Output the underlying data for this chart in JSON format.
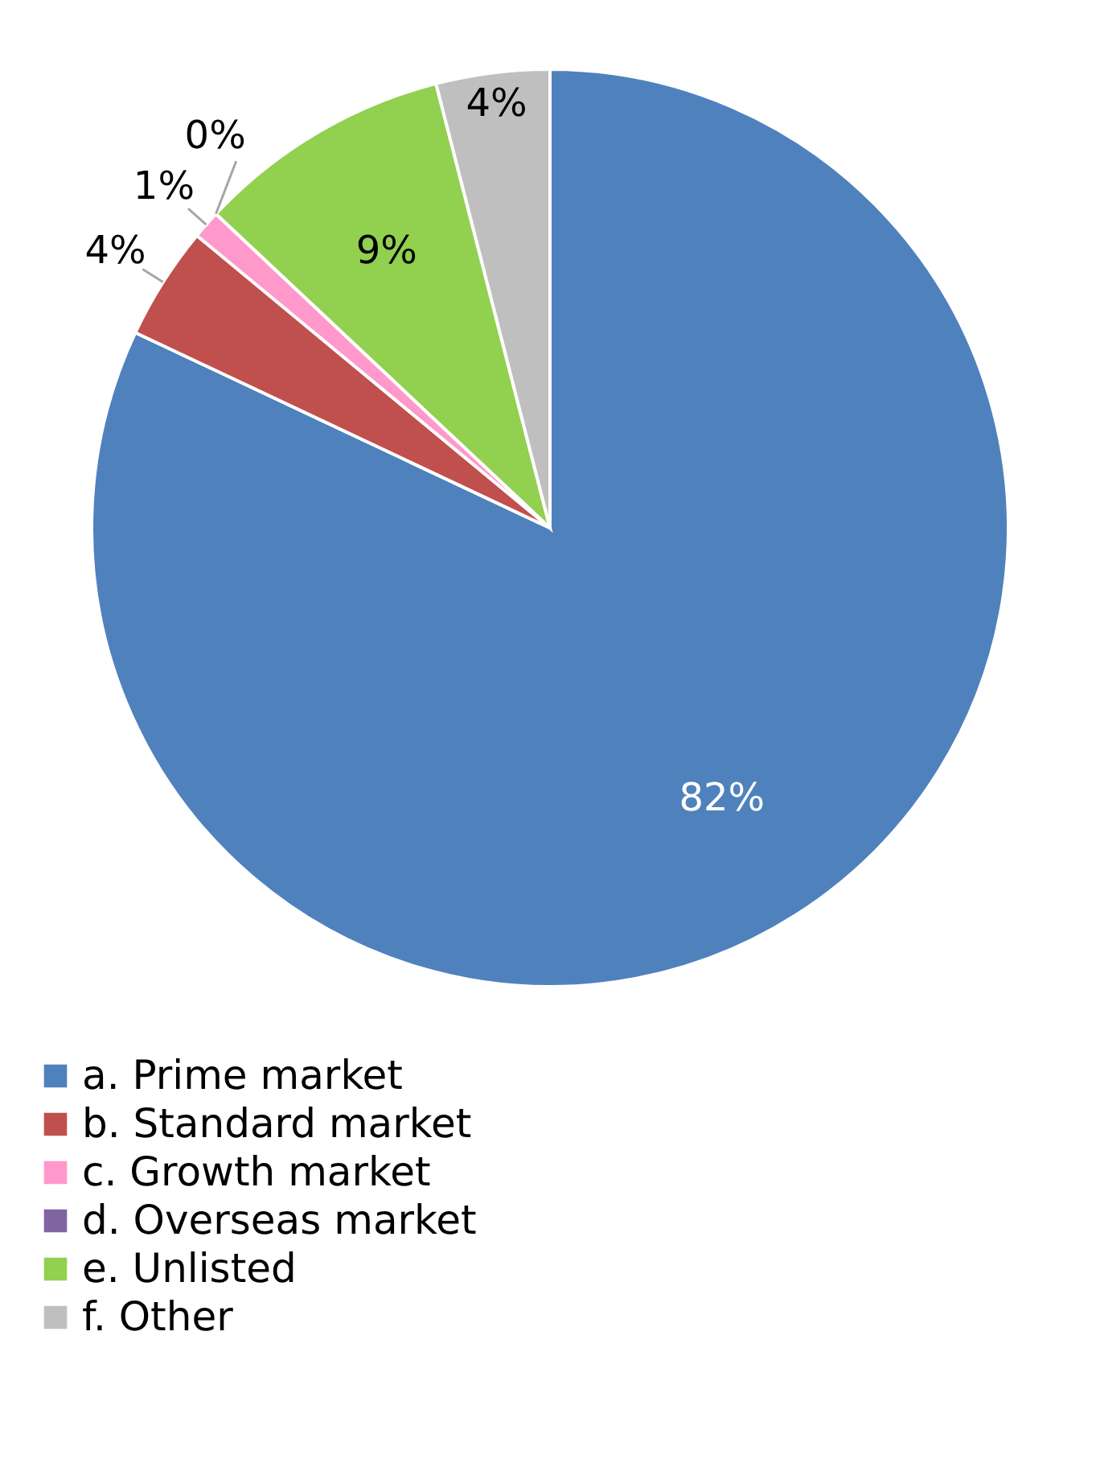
{
  "chart_data": {
    "type": "pie",
    "categories": [
      "a. Prime market",
      "b. Standard market",
      "c. Growth market",
      "d. Overseas market",
      "e. Unlisted",
      "f. Other"
    ],
    "values": [
      82,
      4,
      1,
      0,
      9,
      4
    ],
    "colors": [
      "#4f81bd",
      "#c0504d",
      "#ff99cc",
      "#8064a2",
      "#92d050",
      "#bfbfbf"
    ],
    "value_labels": [
      "82%",
      "4%",
      "1%",
      "0%",
      "9%",
      "4%"
    ],
    "legend": "bottom"
  }
}
